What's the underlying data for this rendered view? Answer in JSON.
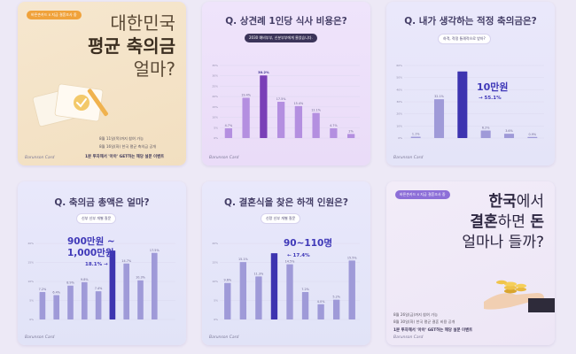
{
  "card1": {
    "badge": "바른손카드 x 지금 결혼조사 중",
    "line1": "대한민국",
    "line2": "평균 축의금",
    "line3": "얼마?",
    "note1": "8월 11일(목)까지 참여 가능",
    "note2": "8월 16일(화) 한국 평균 축의금 공개",
    "footer": "1분 투자해서 '아아' GET하는 해당 설문 이벤트",
    "brand": "Barunson Card"
  },
  "card2": {
    "title": "Q. 상견례 1인당 식사 비용은?",
    "badge": "2030 예비부부, 신분부부에게 물었습니다."
  },
  "card3": {
    "title": "Q. 내가 생각하는 적정 축의금은?",
    "badge": "하객, 적정 통례적으로 받아?",
    "callout_main": "10만원",
    "callout_sub": "→ 55.1%"
  },
  "card4": {
    "title": "Q. 축의금 총액은 얼마?",
    "badge": "신부 신부 개별 질문",
    "callout_main1": "900만원 ~",
    "callout_main2": "1,000만원",
    "callout_sub": "18.1% →"
  },
  "card5": {
    "title": "Q. 결혼식을 찾은 하객 인원은?",
    "badge": "신랑 신부 개별 질문",
    "callout_main": "90~110명",
    "callout_sub": "← 17.4%"
  },
  "card6": {
    "badge": "바른손카드 x 지금 결혼조사 중",
    "line1a": "한국",
    "line1b": "에서",
    "line2a": "결혼",
    "line2b": "하면 ",
    "line2c": "돈",
    "line3": "얼마나 들까?",
    "note1": "8월 26일(금)까지 참여 가능",
    "note2": "8월 30일(화) 한국 평균 결혼 비용 공개",
    "footer": "1분 투자해서 '아아' GET하는 해당 설문 이벤트",
    "brand": "Barunson Card"
  },
  "chart_data": [
    {
      "type": "bar",
      "title": "Q. 상견례 1인당 식사 비용은?",
      "categories": [
        "",
        "",
        "",
        "",
        "",
        "",
        "",
        ""
      ],
      "values": [
        4.7,
        19.4,
        30.2,
        17.5,
        15.4,
        12.1,
        4.7,
        2.0
      ],
      "value_labels": [
        "4.7%",
        "19.4%",
        "30.2%",
        "17.5%",
        "15.4%",
        "12.1%",
        "4.7%",
        "2%"
      ],
      "highlight_index": 2,
      "ylim": [
        0,
        35
      ],
      "yticks": [
        "0%",
        "5%",
        "10%",
        "15%",
        "20%",
        "25%",
        "30%",
        "35%"
      ],
      "colors": {
        "bar": "#b48fe0",
        "highlight": "#7a3fb7"
      }
    },
    {
      "type": "bar",
      "title": "Q. 내가 생각하는 적정 축의금은?",
      "categories": [
        "",
        "",
        "",
        "",
        "",
        ""
      ],
      "values": [
        1.1,
        32.1,
        55.1,
        6.2,
        3.6,
        0.9
      ],
      "value_labels": [
        "1.1%",
        "32.1%",
        "",
        "6.2%",
        "3.6%",
        "0.9%"
      ],
      "highlight_index": 2,
      "ylim": [
        0,
        60
      ],
      "yticks": [
        "0%",
        "10%",
        "20%",
        "30%",
        "40%",
        "50%",
        "60%"
      ],
      "colors": {
        "bar": "#9f9ad8",
        "highlight": "#3d34b0"
      }
    },
    {
      "type": "bar",
      "title": "Q. 축의금 총액은 얼마?",
      "categories": [
        "",
        "",
        "",
        "",
        "",
        "",
        "",
        "",
        "",
        ""
      ],
      "values": [
        7.2,
        6.4,
        8.9,
        9.8,
        7.4,
        18.1,
        14.7,
        10.3,
        17.5,
        0
      ],
      "value_labels": [
        "7.2%",
        "6.4%",
        "8.9%",
        "9.8%",
        "7.4%",
        "",
        "14.7%",
        "10.3%",
        "17.5%",
        ""
      ],
      "highlight_index": 5,
      "ylim": [
        0,
        20
      ],
      "yticks": [
        "0%",
        "5%",
        "10%",
        "15%",
        "20%"
      ],
      "colors": {
        "bar": "#9f9ad8",
        "highlight": "#3d34b0"
      }
    },
    {
      "type": "bar",
      "title": "Q. 결혼식을 찾은 하객 인원은?",
      "categories": [
        "",
        "",
        "",
        "",
        "",
        "",
        "",
        "",
        ""
      ],
      "values": [
        9.6,
        15.1,
        11.3,
        17.4,
        14.5,
        7.2,
        4.0,
        5.2,
        15.5
      ],
      "value_labels": [
        "9.6%",
        "15.1%",
        "11.3%",
        "",
        "14.5%",
        "7.2%",
        "4.0%",
        "5.2%",
        "15.5%"
      ],
      "highlight_index": 3,
      "ylim": [
        0,
        20
      ],
      "yticks": [
        "0%",
        "5%",
        "10%",
        "15%",
        "20%"
      ],
      "colors": {
        "bar": "#9f9ad8",
        "highlight": "#3d34b0"
      }
    }
  ]
}
